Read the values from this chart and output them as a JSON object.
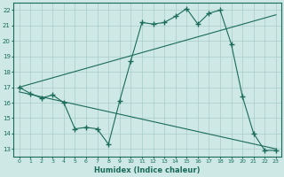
{
  "xlabel": "Humidex (Indice chaleur)",
  "bg_color": "#cde8e5",
  "grid_color": "#aaccca",
  "line_color": "#1a6b5a",
  "xlim": [
    -0.5,
    23.5
  ],
  "ylim": [
    12.5,
    22.5
  ],
  "xticks": [
    0,
    1,
    2,
    3,
    4,
    5,
    6,
    7,
    8,
    9,
    10,
    11,
    12,
    13,
    14,
    15,
    16,
    17,
    18,
    19,
    20,
    21,
    22,
    23
  ],
  "yticks": [
    13,
    14,
    15,
    16,
    17,
    18,
    19,
    20,
    21,
    22
  ],
  "series_up_x": [
    0,
    1,
    2,
    3,
    4,
    5,
    6,
    7,
    8,
    9,
    10,
    11,
    12,
    13,
    14,
    15,
    16,
    17,
    18
  ],
  "series_up_y": [
    17.0,
    16.6,
    16.3,
    16.5,
    16.0,
    14.3,
    14.4,
    14.3,
    13.3,
    16.1,
    18.7,
    21.2,
    21.1,
    21.2,
    21.6,
    22.1,
    21.1,
    21.8,
    22.0
  ],
  "series_down_x": [
    19,
    20,
    21,
    22,
    23
  ],
  "series_down_y": [
    19.8,
    16.4,
    14.0,
    12.9,
    12.9
  ],
  "trend1_x": [
    0,
    23
  ],
  "trend1_y": [
    17.0,
    21.7
  ],
  "trend2_x": [
    0,
    23
  ],
  "trend2_y": [
    16.7,
    13.0
  ],
  "markersize": 2.5
}
